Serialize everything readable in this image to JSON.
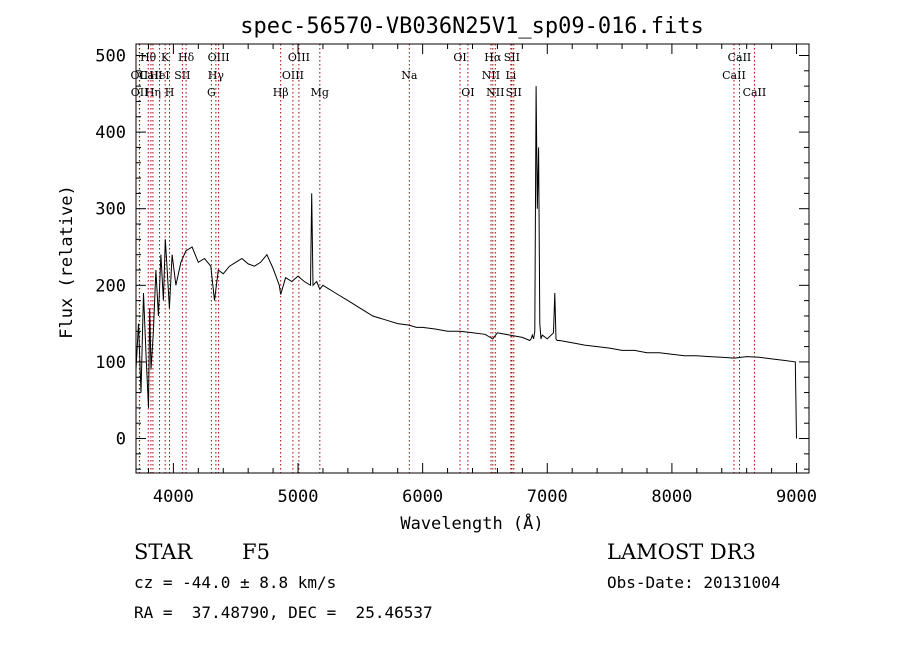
{
  "chart_data": {
    "type": "line",
    "title": "spec-56570-VB036N25V1_sp09-016.fits",
    "xlabel": "Wavelength (Å)",
    "ylabel": "Flux (relative)",
    "xlim": [
      3700,
      9100
    ],
    "ylim": [
      -45,
      515
    ],
    "x_ticks": [
      4000,
      5000,
      6000,
      7000,
      8000,
      9000
    ],
    "y_ticks": [
      0,
      100,
      200,
      300,
      400,
      500
    ],
    "grid": false,
    "line_color": "#000000",
    "marker_color": "#b00000",
    "spectrum": {
      "x": [
        3700,
        3720,
        3740,
        3760,
        3780,
        3800,
        3810,
        3820,
        3840,
        3860,
        3880,
        3900,
        3920,
        3935,
        3950,
        3968,
        3990,
        4020,
        4060,
        4100,
        4150,
        4200,
        4250,
        4300,
        4330,
        4360,
        4400,
        4450,
        4500,
        4550,
        4600,
        4650,
        4700,
        4750,
        4800,
        4850,
        4861,
        4900,
        4950,
        5000,
        5050,
        5100,
        5110,
        5120,
        5150,
        5175,
        5200,
        5300,
        5400,
        5500,
        5600,
        5700,
        5800,
        5890,
        5950,
        6000,
        6100,
        6200,
        6300,
        6400,
        6500,
        6563,
        6600,
        6700,
        6800,
        6860,
        6870,
        6880,
        6890,
        6900,
        6910,
        6920,
        6930,
        6940,
        6950,
        6960,
        7000,
        7050,
        7060,
        7070,
        7080,
        7100,
        7200,
        7300,
        7400,
        7500,
        7600,
        7700,
        7800,
        7900,
        8000,
        8100,
        8200,
        8300,
        8400,
        8500,
        8600,
        8700,
        8800,
        8900,
        8990,
        9000
      ],
      "y": [
        90,
        150,
        60,
        190,
        110,
        40,
        170,
        90,
        140,
        220,
        160,
        240,
        180,
        260,
        220,
        170,
        240,
        200,
        230,
        245,
        250,
        230,
        235,
        225,
        180,
        220,
        215,
        225,
        230,
        235,
        228,
        225,
        230,
        240,
        222,
        200,
        188,
        210,
        205,
        212,
        205,
        200,
        320,
        200,
        205,
        195,
        200,
        190,
        180,
        170,
        160,
        155,
        150,
        148,
        145,
        145,
        143,
        140,
        140,
        138,
        136,
        130,
        138,
        135,
        132,
        128,
        130,
        135,
        130,
        140,
        460,
        300,
        380,
        150,
        130,
        135,
        130,
        138,
        190,
        130,
        128,
        128,
        125,
        122,
        120,
        118,
        115,
        115,
        112,
        112,
        110,
        108,
        108,
        107,
        106,
        105,
        107,
        106,
        104,
        102,
        100,
        0
      ]
    },
    "lines": [
      {
        "label": "Hθ",
        "x": 3798,
        "row": 0
      },
      {
        "label": "OII",
        "x": 3727,
        "row": 1
      },
      {
        "label": "OII",
        "x": 3729,
        "row": 2
      },
      {
        "label": "CaII",
        "x": 3820,
        "row": 1
      },
      {
        "label": "Hη",
        "x": 3836,
        "row": 2
      },
      {
        "label": "K",
        "x": 3934,
        "row": 0
      },
      {
        "label": "HeI",
        "x": 3889,
        "row": 1
      },
      {
        "label": "H",
        "x": 3969,
        "row": 2
      },
      {
        "label": "SII",
        "x": 4072,
        "row": 1
      },
      {
        "label": "Hδ",
        "x": 4102,
        "row": 0
      },
      {
        "label": "OIII",
        "x": 4363,
        "row": 0
      },
      {
        "label": "Hγ",
        "x": 4341,
        "row": 1
      },
      {
        "label": "G",
        "x": 4305,
        "row": 2
      },
      {
        "label": "Hβ",
        "x": 4861,
        "row": 2
      },
      {
        "label": "OIII",
        "x": 5007,
        "row": 0
      },
      {
        "label": "OIII",
        "x": 4959,
        "row": 1
      },
      {
        "label": "Mg",
        "x": 5175,
        "row": 2
      },
      {
        "label": "Na",
        "x": 5893,
        "row": 1
      },
      {
        "label": "OI",
        "x": 6300,
        "row": 0
      },
      {
        "label": "OI",
        "x": 6363,
        "row": 2
      },
      {
        "label": "Hα",
        "x": 6563,
        "row": 0
      },
      {
        "label": "NII",
        "x": 6548,
        "row": 1
      },
      {
        "label": "NII",
        "x": 6583,
        "row": 2
      },
      {
        "label": "SII",
        "x": 6716,
        "row": 0
      },
      {
        "label": "Li",
        "x": 6708,
        "row": 1
      },
      {
        "label": "SII",
        "x": 6731,
        "row": 2
      },
      {
        "label": "CaII",
        "x": 8542,
        "row": 0
      },
      {
        "label": "CaII",
        "x": 8498,
        "row": 1
      },
      {
        "label": "CaII",
        "x": 8662,
        "row": 2
      }
    ]
  },
  "footer": {
    "object_class": "STAR",
    "subclass": "F5",
    "survey": "LAMOST DR3",
    "redshift": "cz = -44.0 ± 8.8 km/s",
    "obs_date": "Obs-Date: 20131004",
    "coords": "RA =  37.48790, DEC =  25.46537"
  }
}
